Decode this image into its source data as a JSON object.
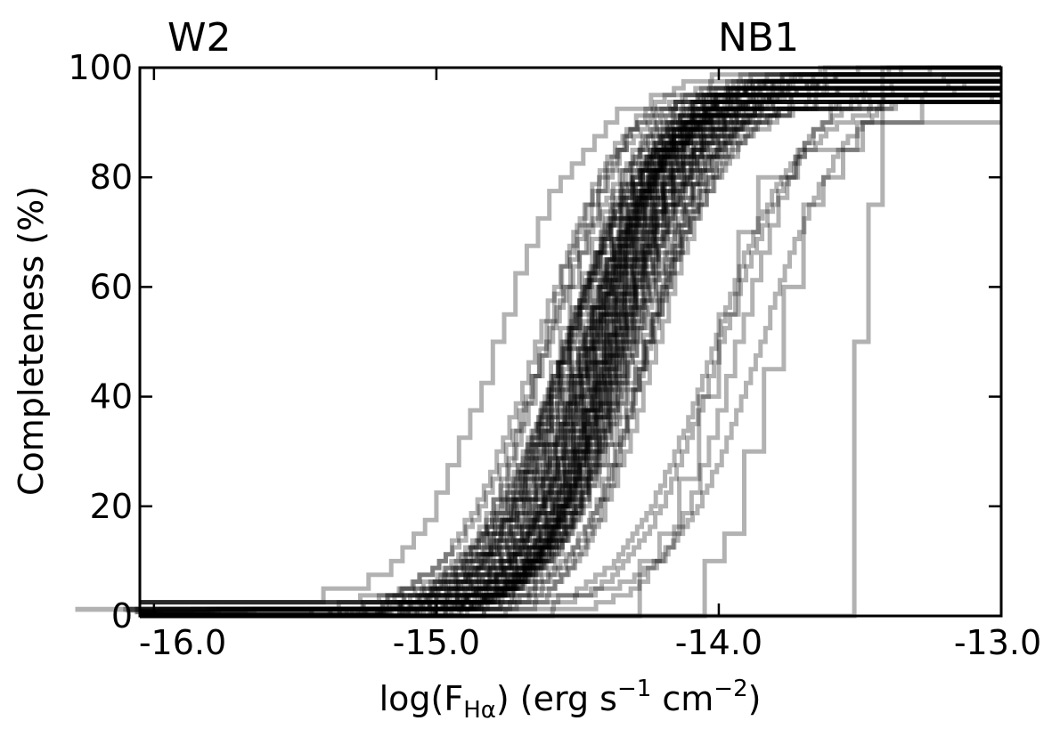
{
  "chart_data": {
    "type": "line",
    "drawstyle": "steps-post",
    "corner_labels": {
      "left": "W2",
      "right": "NB1"
    },
    "xlabel": {
      "prefix": "log(F",
      "subscript": "Hα",
      "middle": ") (erg s",
      "sup1": "−1",
      "middle2": " cm",
      "sup2": "−2",
      "suffix": ")"
    },
    "ylabel": "Completeness (%)",
    "xlim": [
      -16.05,
      -13.0
    ],
    "ylim": [
      0,
      100
    ],
    "x_ticks": [
      -16.0,
      -15.0,
      -14.0,
      -13.0
    ],
    "x_tick_labels": [
      "-16.0",
      "-15.0",
      "-14.0",
      "-13.0"
    ],
    "y_ticks": [
      0,
      20,
      40,
      60,
      80,
      100
    ],
    "y_tick_labels": [
      "0",
      "20",
      "40",
      "60",
      "80",
      "100"
    ],
    "grid": false,
    "legend": false,
    "line_color": "#000000",
    "line_opacity": 0.3,
    "n_curves": 70,
    "curve_model": "cumulative (sigmoid) completeness curves, 10%–90% span ≈ 0.35 dex",
    "midpoint_range": [
      -14.75,
      -13.85
    ],
    "special_curves": [
      {
        "description": "steep single-step curve",
        "x_step": -13.52,
        "plateau": 100
      },
      {
        "description": "late rising curve",
        "x_start": -14.05,
        "plateau": 93
      },
      {
        "description": "coarse-step curve",
        "x_start": -14.28,
        "plateau": 88
      },
      {
        "description": "low floor curve",
        "floor": 2.5,
        "x_start": -14.8,
        "plateau": 96
      }
    ]
  }
}
